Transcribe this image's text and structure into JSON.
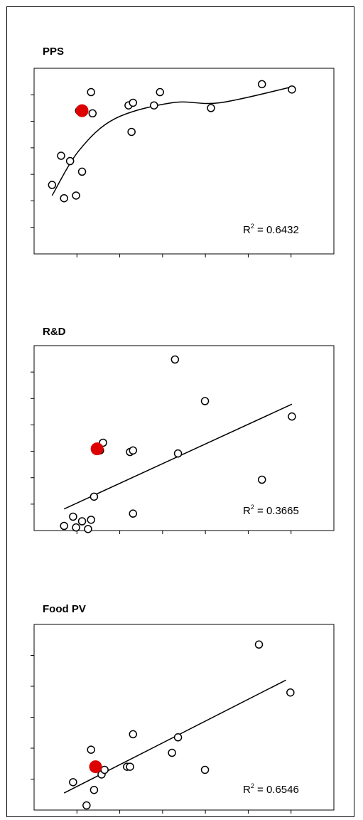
{
  "chart_data": [
    {
      "type": "scatter",
      "title": "PPS",
      "r_squared_label": "R² = 0.6432",
      "r_squared_text": {
        "pre": "R",
        "sup": "2",
        "post": " = 0.6432"
      },
      "xlim": [
        0,
        10
      ],
      "ylim": [
        0,
        7
      ],
      "trendline": "smooth",
      "points": [
        {
          "x": 0.6,
          "y": 2.6
        },
        {
          "x": 1.0,
          "y": 2.1
        },
        {
          "x": 0.9,
          "y": 3.7
        },
        {
          "x": 1.2,
          "y": 3.5
        },
        {
          "x": 1.4,
          "y": 2.2
        },
        {
          "x": 1.5,
          "y": 5.4
        },
        {
          "x": 1.6,
          "y": 3.1
        },
        {
          "x": 1.9,
          "y": 6.1
        },
        {
          "x": 1.95,
          "y": 5.3
        },
        {
          "x": 3.15,
          "y": 5.6
        },
        {
          "x": 3.25,
          "y": 4.6
        },
        {
          "x": 3.3,
          "y": 5.7
        },
        {
          "x": 4.0,
          "y": 5.6
        },
        {
          "x": 4.2,
          "y": 6.1
        },
        {
          "x": 5.9,
          "y": 5.5
        },
        {
          "x": 7.6,
          "y": 6.4
        },
        {
          "x": 8.6,
          "y": 6.2
        }
      ],
      "highlight": {
        "x": 1.6,
        "y": 5.4,
        "color": "#dd0000"
      },
      "trend": [
        {
          "x": 0.6,
          "y": 2.2
        },
        {
          "x": 1.5,
          "y": 3.9
        },
        {
          "x": 2.7,
          "y": 5.1
        },
        {
          "x": 4.6,
          "y": 5.7
        },
        {
          "x": 6.2,
          "y": 5.7
        },
        {
          "x": 8.6,
          "y": 6.3
        }
      ]
    },
    {
      "type": "scatter",
      "title": "R&D",
      "r_squared_label": "R² = 0.3665",
      "r_squared_text": {
        "pre": "R",
        "sup": "2",
        "post": " = 0.3665"
      },
      "xlim": [
        0,
        10
      ],
      "ylim": [
        0,
        6
      ],
      "trendline": "linear",
      "points": [
        {
          "x": 1.0,
          "y": 0.15
        },
        {
          "x": 1.3,
          "y": 0.45
        },
        {
          "x": 1.4,
          "y": 0.1
        },
        {
          "x": 1.6,
          "y": 0.3
        },
        {
          "x": 1.8,
          "y": 0.05
        },
        {
          "x": 1.9,
          "y": 0.35
        },
        {
          "x": 2.0,
          "y": 1.1
        },
        {
          "x": 2.2,
          "y": 2.6
        },
        {
          "x": 2.3,
          "y": 2.85
        },
        {
          "x": 3.2,
          "y": 2.55
        },
        {
          "x": 3.3,
          "y": 2.6
        },
        {
          "x": 3.3,
          "y": 0.55
        },
        {
          "x": 4.7,
          "y": 5.55
        },
        {
          "x": 4.8,
          "y": 2.5
        },
        {
          "x": 5.7,
          "y": 4.2
        },
        {
          "x": 7.6,
          "y": 1.65
        },
        {
          "x": 8.6,
          "y": 3.7
        }
      ],
      "highlight": {
        "x": 2.1,
        "y": 2.65,
        "color": "#dd0000"
      },
      "trend": [
        {
          "x": 1.0,
          "y": 0.7
        },
        {
          "x": 8.6,
          "y": 4.1
        }
      ]
    },
    {
      "type": "scatter",
      "title": "Food PV",
      "r_squared_label": "R² = 0.6546",
      "r_squared_text": {
        "pre": "R",
        "sup": "2",
        "post": " = 0.6546"
      },
      "xlim": [
        0,
        10
      ],
      "ylim": [
        0,
        6
      ],
      "trendline": "linear",
      "points": [
        {
          "x": 1.3,
          "y": 0.9
        },
        {
          "x": 1.75,
          "y": 0.15
        },
        {
          "x": 1.9,
          "y": 1.95
        },
        {
          "x": 2.0,
          "y": 0.65
        },
        {
          "x": 2.25,
          "y": 1.15
        },
        {
          "x": 2.35,
          "y": 1.3
        },
        {
          "x": 3.1,
          "y": 1.4
        },
        {
          "x": 3.2,
          "y": 1.4
        },
        {
          "x": 3.3,
          "y": 2.45
        },
        {
          "x": 4.6,
          "y": 1.85
        },
        {
          "x": 4.8,
          "y": 2.35
        },
        {
          "x": 5.7,
          "y": 1.3
        },
        {
          "x": 7.5,
          "y": 5.35
        },
        {
          "x": 8.55,
          "y": 3.8
        }
      ],
      "highlight": {
        "x": 2.05,
        "y": 1.4,
        "color": "#dd0000"
      },
      "trend": [
        {
          "x": 1.0,
          "y": 0.55
        },
        {
          "x": 8.4,
          "y": 4.2
        }
      ]
    }
  ]
}
